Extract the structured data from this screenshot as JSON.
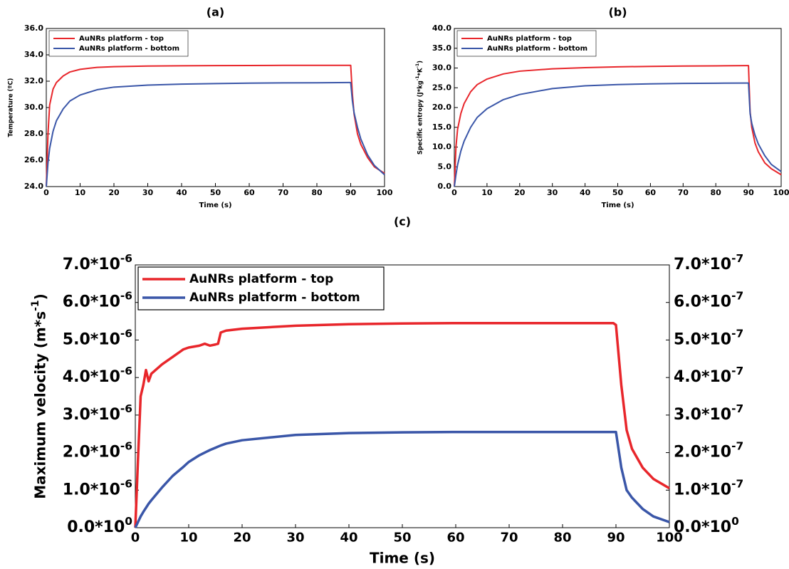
{
  "chart_data": [
    {
      "type": "line",
      "title": "(a)",
      "xlabel": "Time (s)",
      "ylabel": "Temperature (ºC)",
      "x": [
        0,
        0.5,
        1,
        2,
        3,
        5,
        7,
        10,
        15,
        20,
        30,
        40,
        50,
        60,
        70,
        80,
        89.5,
        90,
        90.5,
        91,
        92,
        93,
        95,
        97,
        100
      ],
      "series": [
        {
          "name": "AuNRs platform - top",
          "color": "#e8262b",
          "values": [
            24,
            28,
            30.2,
            31.4,
            31.9,
            32.4,
            32.7,
            32.9,
            33.05,
            33.1,
            33.15,
            33.17,
            33.18,
            33.19,
            33.2,
            33.2,
            33.2,
            33.2,
            31,
            29.5,
            28,
            27.2,
            26.2,
            25.5,
            25.0
          ]
        },
        {
          "name": "AuNRs platform - bottom",
          "color": "#3a56a8",
          "values": [
            24,
            25.8,
            26.9,
            28.2,
            29,
            29.9,
            30.5,
            30.95,
            31.35,
            31.55,
            31.7,
            31.78,
            31.82,
            31.85,
            31.87,
            31.88,
            31.9,
            31.9,
            30.5,
            29.6,
            28.5,
            27.6,
            26.4,
            25.6,
            24.9
          ]
        }
      ],
      "xlim": [
        0,
        100
      ],
      "xticks": [
        0,
        10,
        20,
        30,
        40,
        50,
        60,
        70,
        80,
        90,
        100
      ],
      "ylim": [
        24,
        36
      ],
      "yticks": [
        {
          "value": 24,
          "label": "24.0"
        },
        {
          "value": 26,
          "label": "26.0"
        },
        {
          "value": 28,
          "label": "28.0"
        },
        {
          "value": 30,
          "label": "30.0"
        },
        {
          "value": 32,
          "label": "32.0"
        },
        {
          "value": 34,
          "label": "34.0"
        },
        {
          "value": 36,
          "label": "36.0"
        }
      ],
      "legend": "upper left"
    },
    {
      "type": "line",
      "title": "(b)",
      "xlabel": "Time (s)",
      "ylabel": "Specific entropy (J*kg^{-1}*K^{-1})",
      "x": [
        0,
        0.5,
        1,
        2,
        3,
        5,
        7,
        10,
        15,
        20,
        30,
        40,
        50,
        60,
        70,
        80,
        89.5,
        90,
        90.5,
        91,
        92,
        93,
        95,
        97,
        100
      ],
      "series": [
        {
          "name": "AuNRs platform - top",
          "color": "#e8262b",
          "values": [
            0,
            10,
            14.5,
            18.5,
            21,
            24,
            25.8,
            27.2,
            28.5,
            29.2,
            29.8,
            30.1,
            30.3,
            30.4,
            30.5,
            30.55,
            30.6,
            30.6,
            19,
            15,
            11,
            8.8,
            6,
            4.5,
            3.0
          ]
        },
        {
          "name": "AuNRs platform - bottom",
          "color": "#3a56a8",
          "values": [
            0,
            3,
            5.5,
            9,
            11.5,
            15,
            17.5,
            19.7,
            22,
            23.3,
            24.8,
            25.5,
            25.8,
            26,
            26.1,
            26.15,
            26.2,
            26.2,
            18.5,
            16,
            13,
            10.8,
            7.8,
            5.6,
            3.8
          ]
        }
      ],
      "xlim": [
        0,
        100
      ],
      "xticks": [
        0,
        10,
        20,
        30,
        40,
        50,
        60,
        70,
        80,
        90,
        100
      ],
      "ylim": [
        0,
        40
      ],
      "yticks": [
        {
          "value": 0,
          "label": "0.0"
        },
        {
          "value": 5,
          "label": "5.0"
        },
        {
          "value": 10,
          "label": "10.0"
        },
        {
          "value": 15,
          "label": "15.0"
        },
        {
          "value": 20,
          "label": "20.0"
        },
        {
          "value": 25,
          "label": "25.0"
        },
        {
          "value": 30,
          "label": "30.0"
        },
        {
          "value": 35,
          "label": "35.0"
        },
        {
          "value": 40,
          "label": "40.0"
        }
      ],
      "legend": "upper left"
    },
    {
      "type": "line",
      "title": "(c)",
      "xlabel": "Time (s)",
      "ylabel": "Maximum velocity (m*s^{-1})",
      "x": [
        0,
        0.5,
        1,
        1.5,
        2,
        2.5,
        3,
        5,
        7,
        9,
        10,
        12,
        13,
        14,
        15,
        15.5,
        16,
        17,
        20,
        30,
        40,
        50,
        60,
        70,
        80,
        89.5,
        90,
        91,
        92,
        93,
        95,
        97,
        100
      ],
      "series": [
        {
          "name": "AuNRs platform - top",
          "color": "#e8262b",
          "values": [
            0,
            1.8e-06,
            3.5e-06,
            3.8e-06,
            4.2e-06,
            3.9e-06,
            4.1e-06,
            4.35e-06,
            4.55e-06,
            4.75e-06,
            4.8e-06,
            4.85e-06,
            4.9e-06,
            4.85e-06,
            4.88e-06,
            4.9e-06,
            5.2e-06,
            5.25e-06,
            5.3e-06,
            5.38e-06,
            5.42e-06,
            5.44e-06,
            5.45e-06,
            5.45e-06,
            5.45e-06,
            5.45e-06,
            5.4e-06,
            3.8e-06,
            2.6e-06,
            2.1e-06,
            1.6e-06,
            1.3e-06,
            1.05e-06
          ]
        },
        {
          "name": "AuNRs platform - bottom",
          "color": "#3a56a8",
          "axis": "y2",
          "values": [
            0,
            1.5e-08,
            3e-08,
            4.2e-08,
            5.3e-08,
            6.4e-08,
            7.3e-08,
            1.07e-07,
            1.38e-07,
            1.62e-07,
            1.75e-07,
            1.93e-07,
            2e-07,
            2.07e-07,
            2.13e-07,
            2.16e-07,
            2.19e-07,
            2.24e-07,
            2.33e-07,
            2.47e-07,
            2.52e-07,
            2.54e-07,
            2.55e-07,
            2.55e-07,
            2.55e-07,
            2.55e-07,
            2.55e-07,
            1.6e-07,
            1e-07,
            8e-08,
            5e-08,
            3e-08,
            1.5e-08
          ]
        }
      ],
      "xlim": [
        0,
        100
      ],
      "xticks": [
        0,
        10,
        20,
        30,
        40,
        50,
        60,
        70,
        80,
        90,
        100
      ],
      "ylim": [
        0,
        7e-06
      ],
      "yticks": [
        {
          "value": 0,
          "label": "0.0*10^{0}"
        },
        {
          "value": 1e-06,
          "label": "1.0*10^{-6}"
        },
        {
          "value": 2e-06,
          "label": "2.0*10^{-6}"
        },
        {
          "value": 3e-06,
          "label": "3.0*10^{-6}"
        },
        {
          "value": 4e-06,
          "label": "4.0*10^{-6}"
        },
        {
          "value": 5e-06,
          "label": "5.0*10^{-6}"
        },
        {
          "value": 6e-06,
          "label": "6.0*10^{-6}"
        },
        {
          "value": 7e-06,
          "label": "7.0*10^{-6}"
        }
      ],
      "y2lim": [
        0,
        7e-07
      ],
      "y2ticks": [
        {
          "value": 0,
          "label": "0.0*10^{0}"
        },
        {
          "value": 1e-07,
          "label": "1.0*10^{-7}"
        },
        {
          "value": 2e-07,
          "label": "2.0*10^{-7}"
        },
        {
          "value": 3e-07,
          "label": "3.0*10^{-7}"
        },
        {
          "value": 4e-07,
          "label": "4.0*10^{-7}"
        },
        {
          "value": 5e-07,
          "label": "5.0*10^{-7}"
        },
        {
          "value": 6e-07,
          "label": "6.0*10^{-7}"
        },
        {
          "value": 7e-07,
          "label": "7.0*10^{-7}"
        }
      ],
      "legend": "upper left"
    }
  ]
}
